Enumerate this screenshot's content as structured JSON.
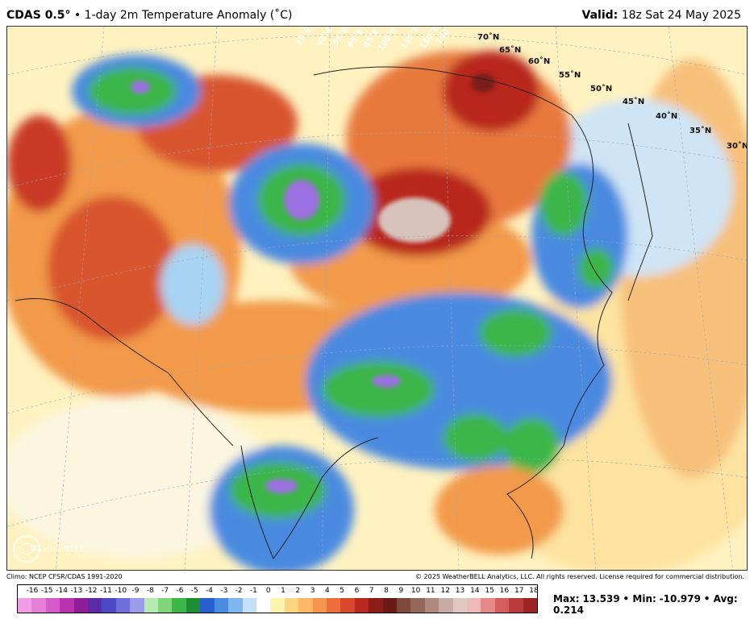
{
  "header": {
    "model": "CDAS 0.5°",
    "product": "• 1-day 2m Temperature Anomaly (˚C)",
    "valid_label": "Valid:",
    "valid_time": "18z Sat 24 May 2025"
  },
  "map": {
    "lat_labels": [
      "70˚N",
      "65˚N",
      "60˚N",
      "55˚N",
      "50˚N",
      "45˚N",
      "40˚N",
      "35˚N",
      "30˚N"
    ],
    "lon_labels": [
      "35˚E",
      "45˚E",
      "55˚E",
      "65˚E",
      "85˚E",
      "100˚E",
      "115˚E",
      "130˚E",
      "140˚E"
    ],
    "colors": {
      "cold_deep": "#7b3fbf",
      "cold_green": "#2fae3a",
      "cold_blue": "#2d6fd6",
      "cool_light": "#a9d3f2",
      "neutral": "#f3f5fb",
      "warm_light": "#fde7a6",
      "warm_orange": "#f29a4a",
      "warm_red": "#d1452a",
      "hot_brown": "#7a1f1a",
      "hottest": "#d8c3bb"
    }
  },
  "logo": {
    "text": "WeatherBELL"
  },
  "footer": {
    "climo": "Climo: NCEP CFSR/CDAS 1991-2020",
    "copyright": "© 2025 WeatherBELL Analytics, LLC. All rights reserved. License required for commercial distribution."
  },
  "colorbar": {
    "ticks": [
      "-16",
      "-15",
      "-14",
      "-13",
      "-12",
      "-11",
      "-10",
      "-9",
      "-8",
      "-7",
      "-6",
      "-5",
      "-4",
      "-3",
      "-2",
      "-1",
      "0",
      "1",
      "2",
      "3",
      "4",
      "5",
      "6",
      "7",
      "8",
      "9",
      "10",
      "11",
      "12",
      "13",
      "14",
      "15",
      "16",
      "17",
      "18"
    ],
    "swatches": [
      "#f29ee6",
      "#e67fd8",
      "#d45cc8",
      "#b833b0",
      "#8e1f99",
      "#5b2ca6",
      "#4c48c4",
      "#6d6ed8",
      "#9b9be6",
      "#b6eab0",
      "#7fd67a",
      "#3db64a",
      "#1f8f35",
      "#2a5fd0",
      "#4a8ae0",
      "#7fb6ee",
      "#c4e0f7",
      "#ffffff",
      "#fff3b0",
      "#ffd680",
      "#ffb865",
      "#f69550",
      "#ea6f3c",
      "#d8482a",
      "#b8281e",
      "#8c1c18",
      "#6a1b17",
      "#7e4a3e",
      "#94685c",
      "#ad897e",
      "#c7aba2",
      "#dfc9c2",
      "#f0b9b9",
      "#e48a8a",
      "#d45e5e",
      "#bb3a3a",
      "#9c2424"
    ]
  },
  "stats": {
    "max_label": "Max:",
    "max": "13.539",
    "min_label": "Min:",
    "min": "-10.979",
    "avg_label": "Avg:",
    "avg": "0.214"
  }
}
